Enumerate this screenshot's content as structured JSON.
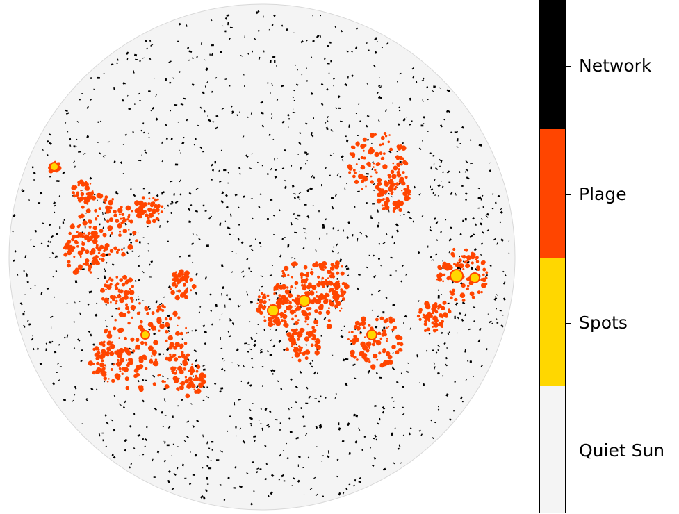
{
  "colorbar": {
    "categories": [
      {
        "label": "Network",
        "color": "#000000"
      },
      {
        "label": "Plage",
        "color": "#ff4500"
      },
      {
        "label": "Spots",
        "color": "#ffd700"
      },
      {
        "label": "Quiet Sun",
        "color": "#f4f4f4"
      }
    ]
  },
  "colors": {
    "quiet_sun": "#f4f4f4",
    "network": "#000000",
    "plage": "#ff4500",
    "spots": "#ffd700",
    "background": "#ffffff"
  }
}
